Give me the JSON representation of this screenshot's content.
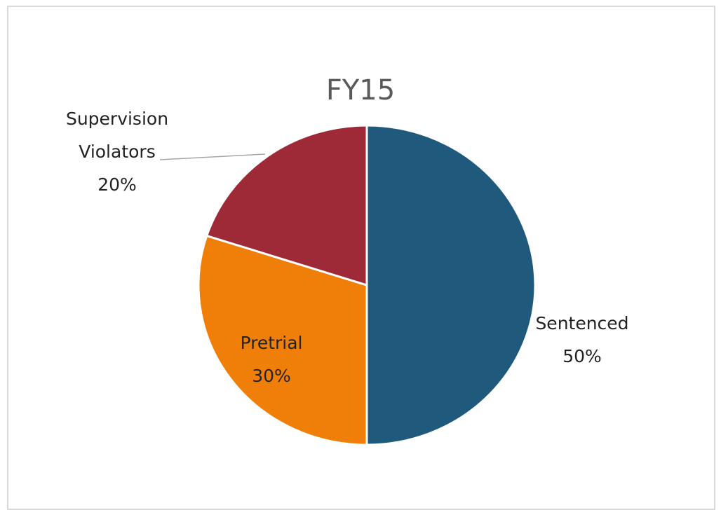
{
  "chart_data": {
    "type": "pie",
    "title": "FY15",
    "categories": [
      "Sentenced",
      "Pretrial",
      "Supervision Violators"
    ],
    "values": [
      50,
      30,
      20
    ],
    "value_labels": [
      "50%",
      "30%",
      "20%"
    ],
    "colors": [
      "#1f5a7c",
      "#f07f09",
      "#9e2a38"
    ]
  }
}
